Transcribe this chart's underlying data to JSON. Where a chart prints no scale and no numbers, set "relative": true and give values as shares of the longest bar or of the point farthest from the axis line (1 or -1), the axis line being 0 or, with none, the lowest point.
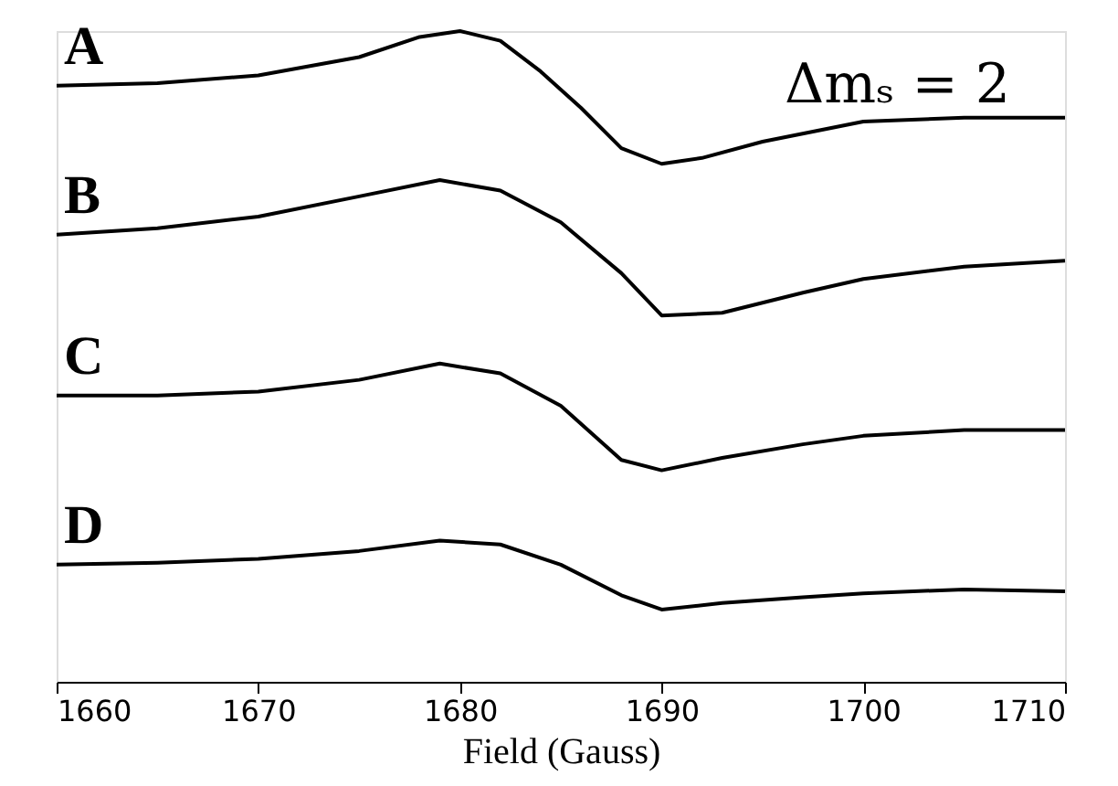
{
  "chart_data": {
    "type": "line",
    "xlabel": "Field (Gauss)",
    "relative": true,
    "xlim": [
      1660,
      1710
    ],
    "xticks": [
      1660,
      1670,
      1680,
      1690,
      1700,
      1710
    ],
    "grid": false,
    "legend": false,
    "marker": "none",
    "line_style": "solid",
    "annotations": [
      "Δmₛ = 2"
    ],
    "series": [
      {
        "name": "A",
        "color": "#000000",
        "x": [
          1660,
          1665,
          1670,
          1675,
          1678,
          1680,
          1682,
          1684,
          1686,
          1688,
          1690,
          1692,
          1695,
          1700,
          1705,
          1710
        ],
        "values": [
          0.916,
          0.92,
          0.932,
          0.96,
          0.991,
          1,
          0.985,
          0.938,
          0.882,
          0.82,
          0.796,
          0.805,
          0.83,
          0.861,
          0.867,
          0.867
        ]
      },
      {
        "name": "B",
        "color": "#000000",
        "x": [
          1660,
          1665,
          1670,
          1675,
          1679,
          1682,
          1685,
          1688,
          1690,
          1693,
          1697,
          1700,
          1705,
          1710
        ],
        "values": [
          0.687,
          0.697,
          0.715,
          0.746,
          0.771,
          0.755,
          0.706,
          0.628,
          0.563,
          0.567,
          0.598,
          0.619,
          0.638,
          0.647
        ]
      },
      {
        "name": "C",
        "color": "#000000",
        "x": [
          1660,
          1665,
          1670,
          1675,
          1679,
          1682,
          1685,
          1688,
          1690,
          1693,
          1697,
          1700,
          1705,
          1710
        ],
        "values": [
          0.44,
          0.44,
          0.446,
          0.464,
          0.489,
          0.474,
          0.424,
          0.341,
          0.325,
          0.344,
          0.365,
          0.378,
          0.387,
          0.387
        ]
      },
      {
        "name": "D",
        "color": "#000000",
        "x": [
          1660,
          1665,
          1670,
          1675,
          1679,
          1682,
          1685,
          1688,
          1690,
          1693,
          1697,
          1700,
          1705,
          1710
        ],
        "values": [
          0.18,
          0.183,
          0.189,
          0.201,
          0.217,
          0.211,
          0.18,
          0.133,
          0.111,
          0.121,
          0.13,
          0.136,
          0.142,
          0.139
        ]
      }
    ]
  }
}
